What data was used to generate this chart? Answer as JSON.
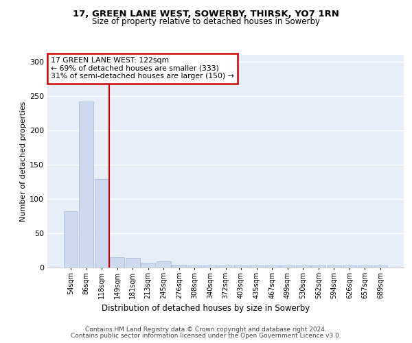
{
  "title1": "17, GREEN LANE WEST, SOWERBY, THIRSK, YO7 1RN",
  "title2": "Size of property relative to detached houses in Sowerby",
  "xlabel": "Distribution of detached houses by size in Sowerby",
  "ylabel": "Number of detached properties",
  "footer1": "Contains HM Land Registry data © Crown copyright and database right 2024.",
  "footer2": "Contains public sector information licensed under the Open Government Licence v3.0.",
  "annotation_line1": "17 GREEN LANE WEST: 122sqm",
  "annotation_line2": "← 69% of detached houses are smaller (333)",
  "annotation_line3": "31% of semi-detached houses are larger (150) →",
  "bar_labels": [
    "54sqm",
    "86sqm",
    "118sqm",
    "149sqm",
    "181sqm",
    "213sqm",
    "245sqm",
    "276sqm",
    "308sqm",
    "340sqm",
    "372sqm",
    "403sqm",
    "435sqm",
    "467sqm",
    "499sqm",
    "530sqm",
    "562sqm",
    "594sqm",
    "626sqm",
    "657sqm",
    "689sqm"
  ],
  "bar_values": [
    82,
    242,
    129,
    15,
    14,
    7,
    9,
    4,
    3,
    3,
    3,
    3,
    3,
    3,
    3,
    3,
    3,
    3,
    3,
    3,
    3
  ],
  "bar_color": "#ccd9ee",
  "bar_edge_color": "#a0b8d8",
  "vline_x": 2.5,
  "vline_color": "#cc0000",
  "plot_background_color": "#e8eef8",
  "ylim": [
    0,
    310
  ],
  "yticks": [
    0,
    50,
    100,
    150,
    200,
    250,
    300
  ]
}
